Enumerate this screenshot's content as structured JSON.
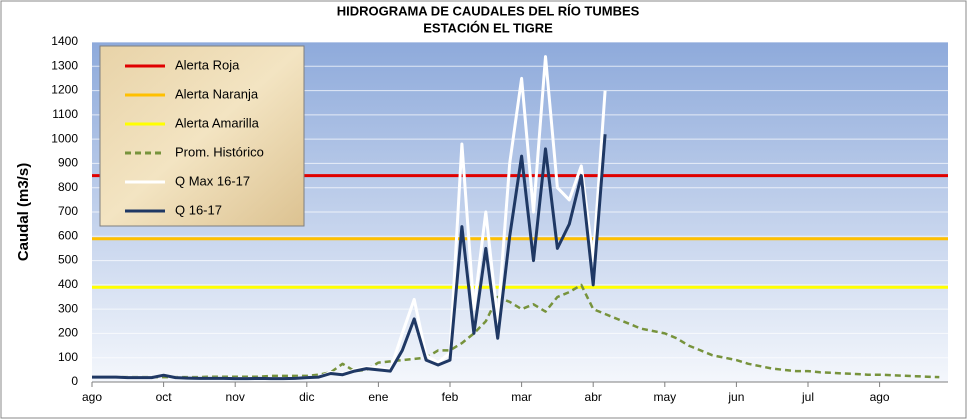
{
  "chart_data": {
    "type": "line",
    "title": "HIDROGRAMA DE CAUDALES  DEL RÍO TUMBES",
    "subtitle": "ESTACIÓN EL TIGRE",
    "y_label": "Caudal (m3/s)",
    "ylim": [
      0,
      1400
    ],
    "yticks": [
      0,
      100,
      200,
      300,
      400,
      500,
      600,
      700,
      800,
      900,
      1000,
      1100,
      1200,
      1300,
      1400
    ],
    "grid": true,
    "legend": "upper-left",
    "categories": [
      "ago",
      null,
      null,
      null,
      null,
      null,
      "oct",
      null,
      null,
      null,
      null,
      null,
      "nov",
      null,
      null,
      null,
      null,
      null,
      "dic",
      null,
      null,
      null,
      null,
      null,
      "ene",
      null,
      null,
      null,
      null,
      null,
      "feb",
      null,
      null,
      null,
      null,
      null,
      "mar",
      null,
      null,
      null,
      null,
      null,
      "abr",
      null,
      null,
      null,
      null,
      null,
      "may",
      null,
      null,
      null,
      null,
      null,
      "jun",
      null,
      null,
      null,
      null,
      null,
      "jul",
      null,
      null,
      null,
      null,
      null,
      "ago",
      null,
      null,
      null,
      null,
      null
    ],
    "reference_lines": [
      {
        "name": "Alerta Roja",
        "color": "#e00000",
        "value": 850
      },
      {
        "name": "Alerta Naranja",
        "color": "#ffc000",
        "value": 590
      },
      {
        "name": "Alerta Amarilla",
        "color": "#ffff00",
        "value": 390
      }
    ],
    "series": [
      {
        "name": "Prom. Histórico",
        "color": "#77933c",
        "dashed": true,
        "values": [
          20,
          20,
          20,
          20,
          20,
          20,
          20,
          20,
          20,
          20,
          22,
          22,
          22,
          22,
          22,
          25,
          25,
          25,
          25,
          30,
          40,
          75,
          45,
          50,
          80,
          85,
          90,
          95,
          100,
          130,
          130,
          160,
          200,
          250,
          350,
          330,
          300,
          320,
          290,
          350,
          370,
          400,
          300,
          280,
          260,
          240,
          220,
          210,
          200,
          180,
          150,
          130,
          110,
          100,
          90,
          75,
          65,
          55,
          50,
          45,
          45,
          40,
          38,
          35,
          33,
          30,
          30,
          28,
          26,
          24,
          22,
          20
        ]
      },
      {
        "name": "Q Max 16-17",
        "color": "#ffffff",
        "dashed": false,
        "values": [
          20,
          20,
          20,
          18,
          18,
          18,
          30,
          18,
          16,
          15,
          15,
          15,
          14,
          14,
          15,
          14,
          14,
          15,
          18,
          20,
          40,
          32,
          50,
          60,
          60,
          50,
          200,
          340,
          110,
          80,
          120,
          980,
          300,
          700,
          250,
          900,
          1250,
          700,
          1340,
          800,
          750,
          890,
          500,
          1200,
          null,
          null,
          null,
          null,
          null,
          null,
          null,
          null,
          null,
          null,
          null,
          null,
          null,
          null,
          null,
          null,
          null,
          null,
          null,
          null,
          null,
          null,
          null,
          null,
          null,
          null,
          null,
          null
        ]
      },
      {
        "name": "Q 16-17",
        "color": "#1f3864",
        "dashed": false,
        "values": [
          20,
          20,
          20,
          18,
          18,
          18,
          28,
          18,
          16,
          15,
          15,
          15,
          14,
          14,
          15,
          14,
          14,
          15,
          18,
          20,
          35,
          30,
          45,
          55,
          50,
          45,
          130,
          260,
          90,
          70,
          90,
          640,
          200,
          550,
          180,
          600,
          930,
          500,
          960,
          550,
          650,
          850,
          400,
          1020,
          null,
          null,
          null,
          null,
          null,
          null,
          null,
          null,
          null,
          null,
          null,
          null,
          null,
          null,
          null,
          null,
          null,
          null,
          null,
          null,
          null,
          null,
          null,
          null,
          null,
          null,
          null,
          null
        ]
      }
    ]
  }
}
